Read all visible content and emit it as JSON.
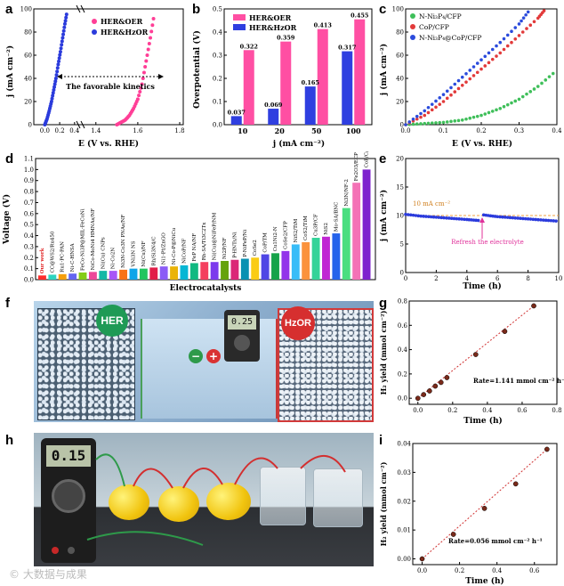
{
  "figure": {
    "watermark": "© 大数据与成果"
  },
  "panels": {
    "a": {
      "label": "a",
      "legend": [
        "HER&OER",
        "HER&HzOR"
      ],
      "ylabel": "j (mA cm⁻²)",
      "xlabel": "E (V vs. RHE)",
      "annotation": "The favorable kinetics",
      "yticks": [
        "0",
        "20",
        "40",
        "60",
        "80",
        "100"
      ],
      "xticks": [
        "0.0",
        "0.2",
        "0.4",
        "1.4",
        "1.6",
        "1.8"
      ]
    },
    "b": {
      "label": "b",
      "legend": [
        "HER&OER",
        "HER&HzOR"
      ],
      "ylabel": "Overpotential (V)",
      "xlabel": "j (mA cm⁻²)",
      "yticks": [
        "0.0",
        "0.1",
        "0.2",
        "0.3",
        "0.4",
        "0.5"
      ]
    },
    "c": {
      "label": "c",
      "legend": [
        "N-Ni₃P₄/CFP",
        "CoP/CFP",
        "N-Ni₃P₄@CoP/CFP"
      ],
      "ylabel": "j (mA cm⁻²)",
      "xlabel": "E (V vs. RHE)",
      "yticks": [
        "0",
        "20",
        "40",
        "60",
        "80",
        "100"
      ],
      "xticks": [
        "0.0",
        "0.1",
        "0.2",
        "0.3",
        "0.4"
      ]
    },
    "d": {
      "label": "d",
      "ylabel": "Voltage (V)",
      "xlabel": "Electrocatalysts",
      "yticks": [
        "0.0",
        "0.1",
        "0.2",
        "0.3",
        "0.4",
        "0.5",
        "0.6",
        "0.7",
        "0.8",
        "0.9",
        "1.0",
        "1.1"
      ]
    },
    "e": {
      "label": "e",
      "ylabel": "j (mA cm⁻²)",
      "xlabel": "Time (h)",
      "ref_label": "10 mA cm⁻²",
      "annotation": "Refresh the electrolyte",
      "yticks": [
        "0",
        "5",
        "10",
        "15",
        "20"
      ],
      "xticks": [
        "0",
        "2",
        "4",
        "6",
        "8",
        "10"
      ]
    },
    "f": {
      "label": "f",
      "left_badge": "HER",
      "right_badge": "HzOR",
      "meter_reading": "0.25",
      "minus": "−",
      "plus": "+"
    },
    "g": {
      "label": "g",
      "ylabel": "H₂ yield (mmol cm⁻²)",
      "xlabel": "Time (h)",
      "rate": "Rate=1.141 mmol cm⁻² h⁻¹",
      "yticks": [
        "0.0",
        "0.2",
        "0.4",
        "0.6",
        "0.8"
      ],
      "xticks": [
        "0.0",
        "0.2",
        "0.4",
        "0.6",
        "0.8"
      ]
    },
    "h": {
      "label": "h",
      "meter_reading": "0.15"
    },
    "i": {
      "label": "i",
      "ylabel": "H₂ yield (mmol cm⁻²)",
      "xlabel": "Time (h)",
      "rate": "Rate=0.056 mmol cm⁻² h⁻¹",
      "yticks": [
        "0.00",
        "0.01",
        "0.02",
        "0.03",
        "0.04"
      ],
      "xticks": [
        "0.0",
        "0.2",
        "0.4",
        "0.6"
      ]
    }
  },
  "chart_data": [
    {
      "panel": "a",
      "type": "scatter",
      "xlabel": "E (V vs. RHE)",
      "ylabel": "j (mA cm-2)",
      "xlim": [
        -0.1,
        1.8
      ],
      "ylim": [
        0,
        100
      ],
      "axis_break": [
        0.45,
        1.35
      ],
      "series": [
        {
          "name": "HER&OER",
          "color": "#ff3e96",
          "x": [
            1.5,
            1.52,
            1.54,
            1.56,
            1.58,
            1.6,
            1.62,
            1.64,
            1.66,
            1.68
          ],
          "y": [
            0,
            2,
            4,
            8,
            14,
            22,
            35,
            55,
            75,
            97
          ]
        },
        {
          "name": "HER&HzOR",
          "color": "#2b3bdc",
          "x": [
            0.0,
            0.03,
            0.06,
            0.09,
            0.12,
            0.15,
            0.18,
            0.21,
            0.24,
            0.27,
            0.3
          ],
          "y": [
            0,
            5,
            12,
            20,
            30,
            40,
            52,
            63,
            75,
            87,
            98
          ]
        }
      ]
    },
    {
      "panel": "b",
      "type": "bar",
      "title": "",
      "categories": [
        "10",
        "20",
        "50",
        "100"
      ],
      "xlabel": "j (mA cm-2)",
      "ylabel": "Overpotential (V)",
      "ylim": [
        0,
        0.5
      ],
      "series": [
        {
          "name": "HER&OER",
          "color": "#ff4fa3",
          "values": [
            0.322,
            0.359,
            0.413,
            0.455
          ]
        },
        {
          "name": "HER&HzOR",
          "color": "#2f3fe0",
          "values": [
            0.037,
            0.069,
            0.165,
            0.317
          ]
        }
      ]
    },
    {
      "panel": "c",
      "type": "scatter",
      "xlabel": "E (V vs. RHE)",
      "ylabel": "j (mA cm-2)",
      "xlim": [
        0,
        0.4
      ],
      "ylim": [
        0,
        100
      ],
      "series": [
        {
          "name": "N-Ni3P4/CFP",
          "color": "#3fbf5a",
          "x": [
            0.0,
            0.05,
            0.1,
            0.15,
            0.2,
            0.25,
            0.3,
            0.35,
            0.4
          ],
          "y": [
            0,
            1,
            2,
            4,
            8,
            14,
            22,
            33,
            47
          ]
        },
        {
          "name": "CoP/CFP",
          "color": "#e23a3a",
          "x": [
            0.0,
            0.05,
            0.1,
            0.15,
            0.2,
            0.25,
            0.3,
            0.35,
            0.37
          ],
          "y": [
            0,
            8,
            20,
            34,
            48,
            62,
            77,
            92,
            100
          ]
        },
        {
          "name": "N-Ni3P4@CoP/CFP",
          "color": "#2b4bdc",
          "x": [
            0.0,
            0.05,
            0.1,
            0.15,
            0.2,
            0.25,
            0.3,
            0.33
          ],
          "y": [
            0,
            12,
            26,
            41,
            56,
            71,
            87,
            100
          ]
        }
      ]
    },
    {
      "panel": "d",
      "type": "bar",
      "ylabel": "Voltage (V)",
      "xlabel": "Electrocatalysts",
      "ylim": [
        0,
        1.1
      ],
      "categories": [
        "Our work",
        "CC@WS2/Ru450",
        "Ru1-PC-PAN",
        "Ni-C-HNSA",
        "FeCo-Ni3P@MIL-FeCoNi",
        "NiCo-MoNi4 HMNAs/NF",
        "Ni(Cu) CNPs",
        "Ni-Co2N",
        "Ni3N-Co3N PNAs/NF",
        "VNi3N NS",
        "Ni(Cu)/NF",
        "Rh/Si3N4/C",
        "Ni1-Pt/ZnGO",
        "Ni-Co-P@NiCu",
        "NiCoP/NF",
        "FeP NA/NF",
        "Rh-SA/Ti3C2Tx",
        "Ni(Cu)@NiFeP/NM",
        "Ni2P/NF",
        "P-HNTs/Ni",
        "P-NiFeP/Ni",
        "CoSe2",
        "CoP/TM",
        "Cu1Ni2-N",
        "CoSe2/CFP",
        "NiS2/TiM",
        "CoS2/TiM",
        "Cu3P/CF",
        "NiS2",
        "Mo-SA/BNC",
        "Ni3N/NF-2",
        "Fe2O3/ECP",
        "CoP/C/Cu3P"
      ],
      "values": [
        0.038,
        0.045,
        0.05,
        0.055,
        0.065,
        0.07,
        0.08,
        0.08,
        0.09,
        0.1,
        0.1,
        0.11,
        0.12,
        0.12,
        0.13,
        0.15,
        0.16,
        0.16,
        0.17,
        0.18,
        0.19,
        0.2,
        0.23,
        0.24,
        0.26,
        0.32,
        0.34,
        0.38,
        0.39,
        0.42,
        0.65,
        0.88,
        1.0
      ]
    },
    {
      "panel": "e",
      "type": "line",
      "xlabel": "Time (h)",
      "ylabel": "j (mA cm-2)",
      "xlim": [
        0,
        10
      ],
      "ylim": [
        0,
        20
      ],
      "reference_line": 10,
      "series": [
        {
          "name": "stability",
          "color": "#2b3bdc",
          "x": [
            0,
            1,
            2,
            3,
            4,
            4.9,
            5.1,
            6,
            7,
            8,
            9,
            10
          ],
          "y": [
            10.2,
            9.9,
            9.7,
            9.5,
            9.3,
            9.1,
            10.1,
            9.8,
            9.6,
            9.4,
            9.2,
            9.0
          ]
        }
      ]
    },
    {
      "panel": "g",
      "type": "scatter",
      "xlabel": "Time (h)",
      "ylabel": "H2 yield (mmol cm-2)",
      "xlim": [
        -0.05,
        0.8
      ],
      "ylim": [
        -0.05,
        0.8
      ],
      "series": [
        {
          "name": "H2 yield",
          "color": "#7a2a1a",
          "x": [
            0.0,
            0.033,
            0.067,
            0.1,
            0.133,
            0.167,
            0.333,
            0.5,
            0.667
          ],
          "y": [
            0.0,
            0.03,
            0.06,
            0.1,
            0.13,
            0.17,
            0.36,
            0.55,
            0.76
          ]
        }
      ]
    },
    {
      "panel": "i",
      "type": "scatter",
      "xlabel": "Time (h)",
      "ylabel": "H2 yield (mmol cm-2)",
      "xlim": [
        -0.05,
        0.72
      ],
      "ylim": [
        -0.002,
        0.04
      ],
      "series": [
        {
          "name": "H2 yield",
          "color": "#7a2a1a",
          "x": [
            0.0,
            0.167,
            0.333,
            0.5,
            0.667
          ],
          "y": [
            0.0,
            0.0085,
            0.0175,
            0.026,
            0.038
          ]
        }
      ]
    }
  ]
}
